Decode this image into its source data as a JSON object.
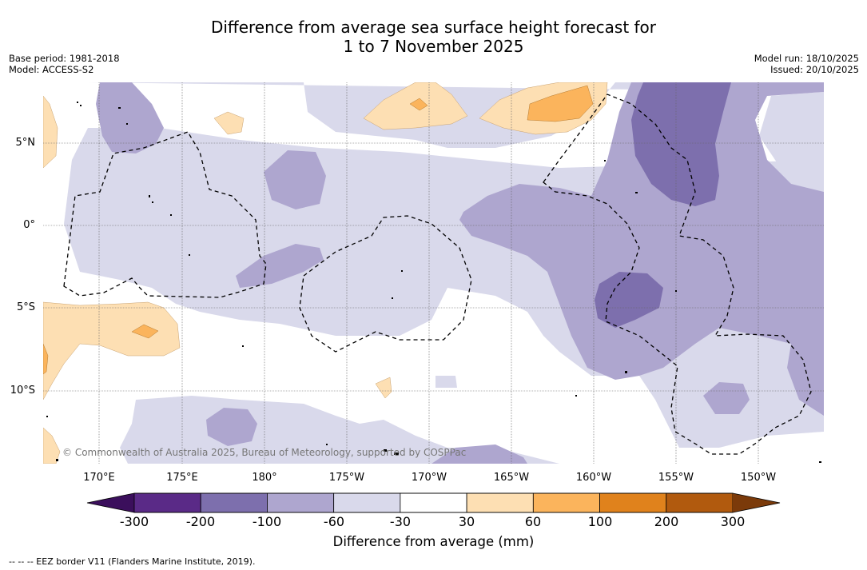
{
  "title": {
    "line1": "Difference from average sea surface height forecast for",
    "line2": "1 to 7 November 2025"
  },
  "meta_left": {
    "base_period": "Base period: 1981-2018",
    "model": "Model: ACCESS-S2"
  },
  "meta_right": {
    "model_run": "Model run: 18/10/2025",
    "issued": "Issued: 20/10/2025"
  },
  "lat_labels": [
    "5°N",
    "0°",
    "5°S",
    "10°S"
  ],
  "lon_labels": [
    "170°E",
    "175°E",
    "180°",
    "175°W",
    "170°W",
    "165°W",
    "160°W",
    "155°W",
    "150°W"
  ],
  "copyright": "© Commonwealth of Australia 2025, Bureau of Meteorology, supported by COSPPac",
  "colorbar": {
    "ticks": [
      "-300",
      "-200",
      "-100",
      "-60",
      "-30",
      "30",
      "60",
      "100",
      "200",
      "300"
    ],
    "colors": [
      "#5a2a87",
      "#7d6fad",
      "#aea6cf",
      "#d9d9eb",
      "#ffffff",
      "#fddfb3",
      "#fbb45c",
      "#e0821c",
      "#b15a0e"
    ],
    "under_color": "#3b0f5c",
    "over_color": "#7b3a0a",
    "label": "Difference from average (mm)"
  },
  "footer": "--  --  -- EEZ border V11 (Flanders Marine Institute, 2019)."
}
